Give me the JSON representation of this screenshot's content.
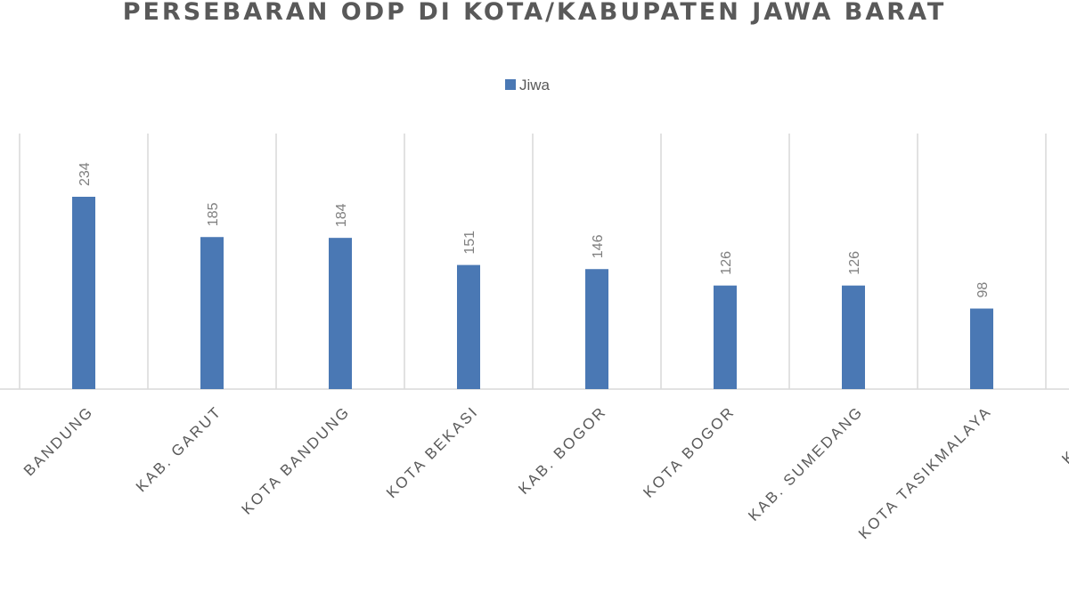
{
  "chart_data": {
    "type": "bar",
    "title": "PERSEBARAN ODP DI KOTA/KABUPATEN JAWA BARAT",
    "legend": {
      "position": "top",
      "entries": [
        "Jiwa"
      ]
    },
    "categories": [
      "BANDUNG",
      "KAB. GARUT",
      "KOTA BANDUNG",
      "KOTA BEKASI",
      "KAB. BOGOR",
      "KOTA BOGOR",
      "KAB. SUMEDANG",
      "KOTA TASIKMALAYA",
      "KAB. BE"
    ],
    "series": [
      {
        "name": "Jiwa",
        "values": [
          234,
          185,
          184,
          151,
          146,
          126,
          126,
          98,
          null
        ]
      }
    ],
    "ylim": [
      0,
      250
    ],
    "grid": "vertical category separators",
    "colors": {
      "bar": "#4a78b4",
      "grid": "#d9d9d9",
      "text": "#595959"
    }
  }
}
